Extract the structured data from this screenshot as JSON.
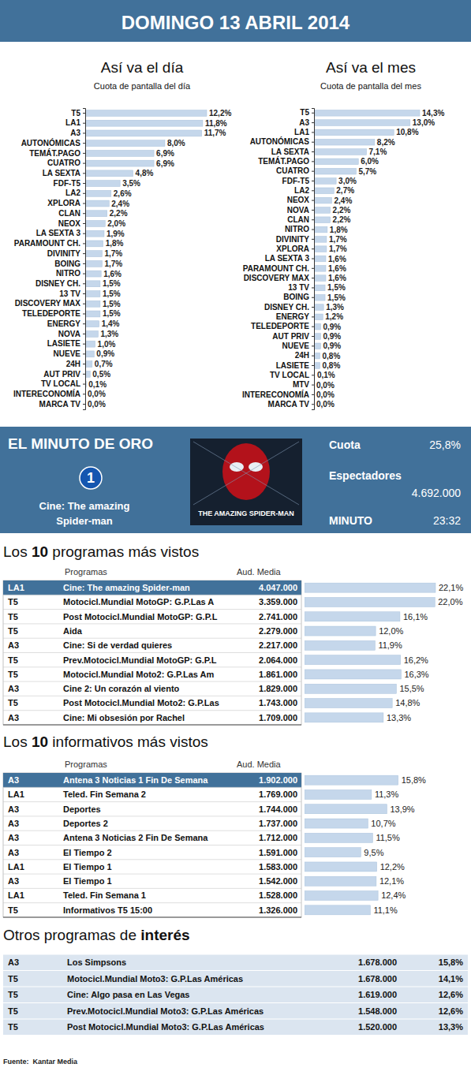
{
  "header": {
    "title": "DOMINGO 13 ABRIL 2014"
  },
  "chart_data": [
    {
      "type": "bar",
      "orientation": "horizontal",
      "title": "Así va el día",
      "subtitle": "Cuota de pantalla del día",
      "categories": [
        "T5",
        "LA1",
        "A3",
        "AUTONÓMICAS",
        "TEMÁT.PAGO",
        "CUATRO",
        "LA SEXTA",
        "FDF-T5",
        "LA2",
        "XPLORA",
        "CLAN",
        "NEOX",
        "LA SEXTA 3",
        "PARAMOUNT CH.",
        "DIVINITY",
        "BOING",
        "NITRO",
        "DISNEY CH.",
        "13 TV",
        "DISCOVERY MAX",
        "TELEDEPORTE",
        "ENERGY",
        "NOVA",
        "LASIETE",
        "NUEVE",
        "24H",
        "AUT PRIV",
        "TV LOCAL",
        "INTERECONOMÍA",
        "MARCA TV"
      ],
      "values": [
        12.2,
        11.8,
        11.7,
        8.0,
        6.9,
        6.9,
        4.8,
        3.5,
        2.6,
        2.4,
        2.2,
        2.0,
        1.9,
        1.8,
        1.7,
        1.7,
        1.6,
        1.5,
        1.5,
        1.5,
        1.5,
        1.4,
        1.3,
        1.0,
        0.9,
        0.7,
        0.5,
        0.1,
        0.0,
        0.0
      ],
      "value_labels": [
        "12,2%",
        "11,8%",
        "11,7%",
        "8,0%",
        "6,9%",
        "6,9%",
        "4,8%",
        "3,5%",
        "2,6%",
        "2,4%",
        "2,2%",
        "2,0%",
        "1,9%",
        "1,8%",
        "1,7%",
        "1,7%",
        "1,6%",
        "1,5%",
        "1,5%",
        "1,5%",
        "1,5%",
        "1,4%",
        "1,3%",
        "1,0%",
        "0,9%",
        "0,7%",
        "0,5%",
        "0,1%",
        "0,0%",
        "0,0%"
      ],
      "color": "#c5d7eb",
      "data_labels": true,
      "tick_labels": "y"
    },
    {
      "type": "bar",
      "orientation": "horizontal",
      "title": "Así va el mes",
      "subtitle": "Cuota de pantalla del mes",
      "categories": [
        "T5",
        "A3",
        "LA1",
        "AUTONÓMICAS",
        "LA SEXTA",
        "TEMÁT.PAGO",
        "CUATRO",
        "FDF-T5",
        "LA2",
        "NEOX",
        "NOVA",
        "CLAN",
        "NITRO",
        "DIVINITY",
        "XPLORA",
        "LA SEXTA 3",
        "PARAMOUNT CH.",
        "DISCOVERY MAX",
        "13 TV",
        "BOING",
        "DISNEY CH.",
        "ENERGY",
        "TELEDEPORTE",
        "AUT PRIV",
        "NUEVE",
        "24H",
        "LASIETE",
        "TV LOCAL",
        "MTV",
        "INTERECONOMÍA",
        "MARCA TV"
      ],
      "values": [
        14.3,
        13.0,
        10.8,
        8.2,
        7.1,
        6.0,
        5.7,
        3.0,
        2.7,
        2.4,
        2.2,
        2.2,
        1.8,
        1.7,
        1.7,
        1.6,
        1.6,
        1.6,
        1.5,
        1.5,
        1.3,
        1.2,
        0.9,
        0.9,
        0.9,
        0.8,
        0.8,
        0.1,
        0.0,
        0.0,
        0.0
      ],
      "value_labels": [
        "14,3%",
        "13,0%",
        "10,8%",
        "8,2%",
        "7,1%",
        "6,0%",
        "5,7%",
        "3,0%",
        "2,7%",
        "2,4%",
        "2,2%",
        "2,2%",
        "1,8%",
        "1,7%",
        "1,7%",
        "1,6%",
        "1,6%",
        "1,6%",
        "1,5%",
        "1,5%",
        "1,3%",
        "1,2%",
        "0,9%",
        "0,9%",
        "0,9%",
        "0,8%",
        "0,8%",
        "0,1%",
        "0,0%",
        "0,0%",
        "0,0%"
      ],
      "color": "#c5d7eb",
      "data_labels": true,
      "tick_labels": "y"
    }
  ],
  "golden_minute": {
    "title": "EL MINUTO DE ORO",
    "channel_logo": "1",
    "program": "Cine: The amazing Spider-man",
    "poster_title": "THE AMAZING SPIDER-MAN",
    "share_label": "Cuota",
    "share": "25,8%",
    "viewers_label": "Espectadores",
    "viewers": "4.692.000",
    "minute_label": "MINUTO",
    "minute": "23:32"
  },
  "top_programs": {
    "title": "Los 10 programas más vistos",
    "title_bold": "10",
    "columns": [
      "Programas",
      "Aud. Media"
    ],
    "rows": [
      {
        "channel": "LA1",
        "program": "Cine: The amazing Spider-man",
        "audience": "4.047.000",
        "share": 22.1,
        "share_label": "22,1%"
      },
      {
        "channel": "T5",
        "program": "Motocicl.Mundial MotoGP: G.P.Las A",
        "audience": "3.359.000",
        "share": 22.0,
        "share_label": "22,0%"
      },
      {
        "channel": "T5",
        "program": "Post Motocicl.Mundial MotoGP: G.P.L",
        "audience": "2.741.000",
        "share": 16.1,
        "share_label": "16,1%"
      },
      {
        "channel": "T5",
        "program": "Aida",
        "audience": "2.279.000",
        "share": 12.0,
        "share_label": "12,0%"
      },
      {
        "channel": "A3",
        "program": "Cine: Si de verdad quieres",
        "audience": "2.217.000",
        "share": 11.9,
        "share_label": "11,9%"
      },
      {
        "channel": "T5",
        "program": "Prev.Motocicl.Mundial MotoGP: G.P.L",
        "audience": "2.064.000",
        "share": 16.2,
        "share_label": "16,2%"
      },
      {
        "channel": "T5",
        "program": "Motocicl.Mundial Moto2: G.P.Las Am",
        "audience": "1.861.000",
        "share": 16.3,
        "share_label": "16,3%"
      },
      {
        "channel": "A3",
        "program": "Cine 2: Un corazón al viento",
        "audience": "1.829.000",
        "share": 15.5,
        "share_label": "15,5%"
      },
      {
        "channel": "T5",
        "program": "Post Motocicl.Mundial Moto2: G.P.Las",
        "audience": "1.743.000",
        "share": 14.8,
        "share_label": "14,8%"
      },
      {
        "channel": "A3",
        "program": "Cine: Mi obsesión por Rachel",
        "audience": "1.709.000",
        "share": 13.3,
        "share_label": "13,3%"
      }
    ]
  },
  "top_news": {
    "title": "Los 10 informativos más vistos",
    "title_bold": "10",
    "columns": [
      "Programas",
      "Aud. Media"
    ],
    "rows": [
      {
        "channel": "A3",
        "program": "Antena 3 Noticias 1 Fin De Semana",
        "audience": "1.902.000",
        "share": 15.8,
        "share_label": "15,8%"
      },
      {
        "channel": "LA1",
        "program": "Teled. Fin Semana 2",
        "audience": "1.769.000",
        "share": 11.3,
        "share_label": "11,3%"
      },
      {
        "channel": "A3",
        "program": "Deportes",
        "audience": "1.744.000",
        "share": 13.9,
        "share_label": "13,9%"
      },
      {
        "channel": "A3",
        "program": "Deportes 2",
        "audience": "1.737.000",
        "share": 10.7,
        "share_label": "10,7%"
      },
      {
        "channel": "A3",
        "program": "Antena 3 Noticias 2 Fin De Semana",
        "audience": "1.712.000",
        "share": 11.5,
        "share_label": "11,5%"
      },
      {
        "channel": "A3",
        "program": "El Tiempo 2",
        "audience": "1.591.000",
        "share": 9.5,
        "share_label": "9,5%"
      },
      {
        "channel": "LA1",
        "program": "El Tiempo 1",
        "audience": "1.583.000",
        "share": 12.2,
        "share_label": "12,2%"
      },
      {
        "channel": "A3",
        "program": "El Tiempo 1",
        "audience": "1.542.000",
        "share": 12.1,
        "share_label": "12,1%"
      },
      {
        "channel": "LA1",
        "program": "Teled. Fin Semana 1",
        "audience": "1.528.000",
        "share": 12.4,
        "share_label": "12,4%"
      },
      {
        "channel": "T5",
        "program": "Informativos T5 15:00",
        "audience": "1.326.000",
        "share": 11.1,
        "share_label": "11,1%"
      }
    ]
  },
  "other_programs": {
    "title": "Otros programas de interés",
    "title_bold": "interés",
    "rows": [
      {
        "channel": "A3",
        "program": "Los Simpsons",
        "audience": "1.678.000",
        "share": "15,8%"
      },
      {
        "channel": "T5",
        "program": "Motocicl.Mundial Moto3: G.P.Las Américas",
        "audience": "1.678.000",
        "share": "14,1%"
      },
      {
        "channel": "T5",
        "program": "Cine: Algo pasa en Las Vegas",
        "audience": "1.619.000",
        "share": "12,6%"
      },
      {
        "channel": "T5",
        "program": "Prev.Motocicl.Mundial Moto3: G.P.Las Américas",
        "audience": "1.548.000",
        "share": "12,6%"
      },
      {
        "channel": "T5",
        "program": "Post Motocicl.Mundial Moto3: G.P.Las Américas",
        "audience": "1.520.000",
        "share": "13,3%"
      }
    ]
  },
  "source": "Fuente:  Kantar Media"
}
